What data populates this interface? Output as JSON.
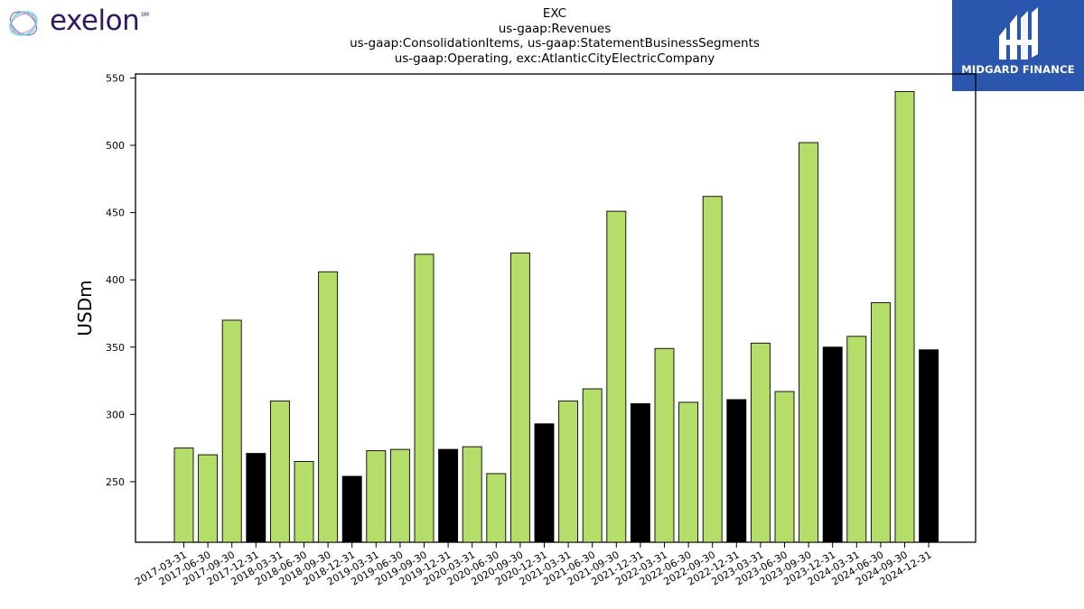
{
  "brand": {
    "name": "exelon",
    "mark": "SM"
  },
  "badge": {
    "text": "MIDGARD FINANCE"
  },
  "title_lines": [
    "EXC",
    "us-gaap:Revenues",
    "us-gaap:ConsolidationItems, us-gaap:StatementBusinessSegments",
    "us-gaap:Operating, exc:AtlanticCityElectricCompany"
  ],
  "colors": {
    "quarter_bar": "#b5dd6a",
    "year_end_bar": "#000000",
    "badge": "#2a56ad",
    "brand": "#2e1a5e"
  },
  "chart_data": {
    "type": "bar",
    "title": "EXC us-gaap:Revenues us-gaap:ConsolidationItems, us-gaap:StatementBusinessSegments us-gaap:Operating, exc:AtlanticCityElectricCompany",
    "xlabel": "",
    "ylabel": "USDm",
    "ylim": [
      205,
      553
    ],
    "yticks": [
      250,
      300,
      350,
      400,
      450,
      500,
      550
    ],
    "grid": false,
    "categories": [
      "2017-03-31",
      "2017-06-30",
      "2017-09-30",
      "2017-12-31",
      "2018-03-31",
      "2018-06-30",
      "2018-09-30",
      "2018-12-31",
      "2019-03-31",
      "2019-06-30",
      "2019-09-30",
      "2019-12-31",
      "2020-03-31",
      "2020-06-30",
      "2020-09-30",
      "2020-12-31",
      "2021-03-31",
      "2021-06-30",
      "2021-09-30",
      "2021-12-31",
      "2022-03-31",
      "2022-06-30",
      "2022-09-30",
      "2022-12-31",
      "2023-03-31",
      "2023-06-30",
      "2023-09-30",
      "2023-12-31",
      "2024-03-31",
      "2024-06-30",
      "2024-09-30",
      "2024-12-31"
    ],
    "values": [
      275,
      270,
      370,
      271,
      310,
      265,
      406,
      254,
      273,
      274,
      419,
      274,
      276,
      256,
      420,
      293,
      310,
      319,
      451,
      308,
      349,
      309,
      462,
      311,
      353,
      317,
      502,
      350,
      358,
      383,
      540,
      348
    ]
  }
}
